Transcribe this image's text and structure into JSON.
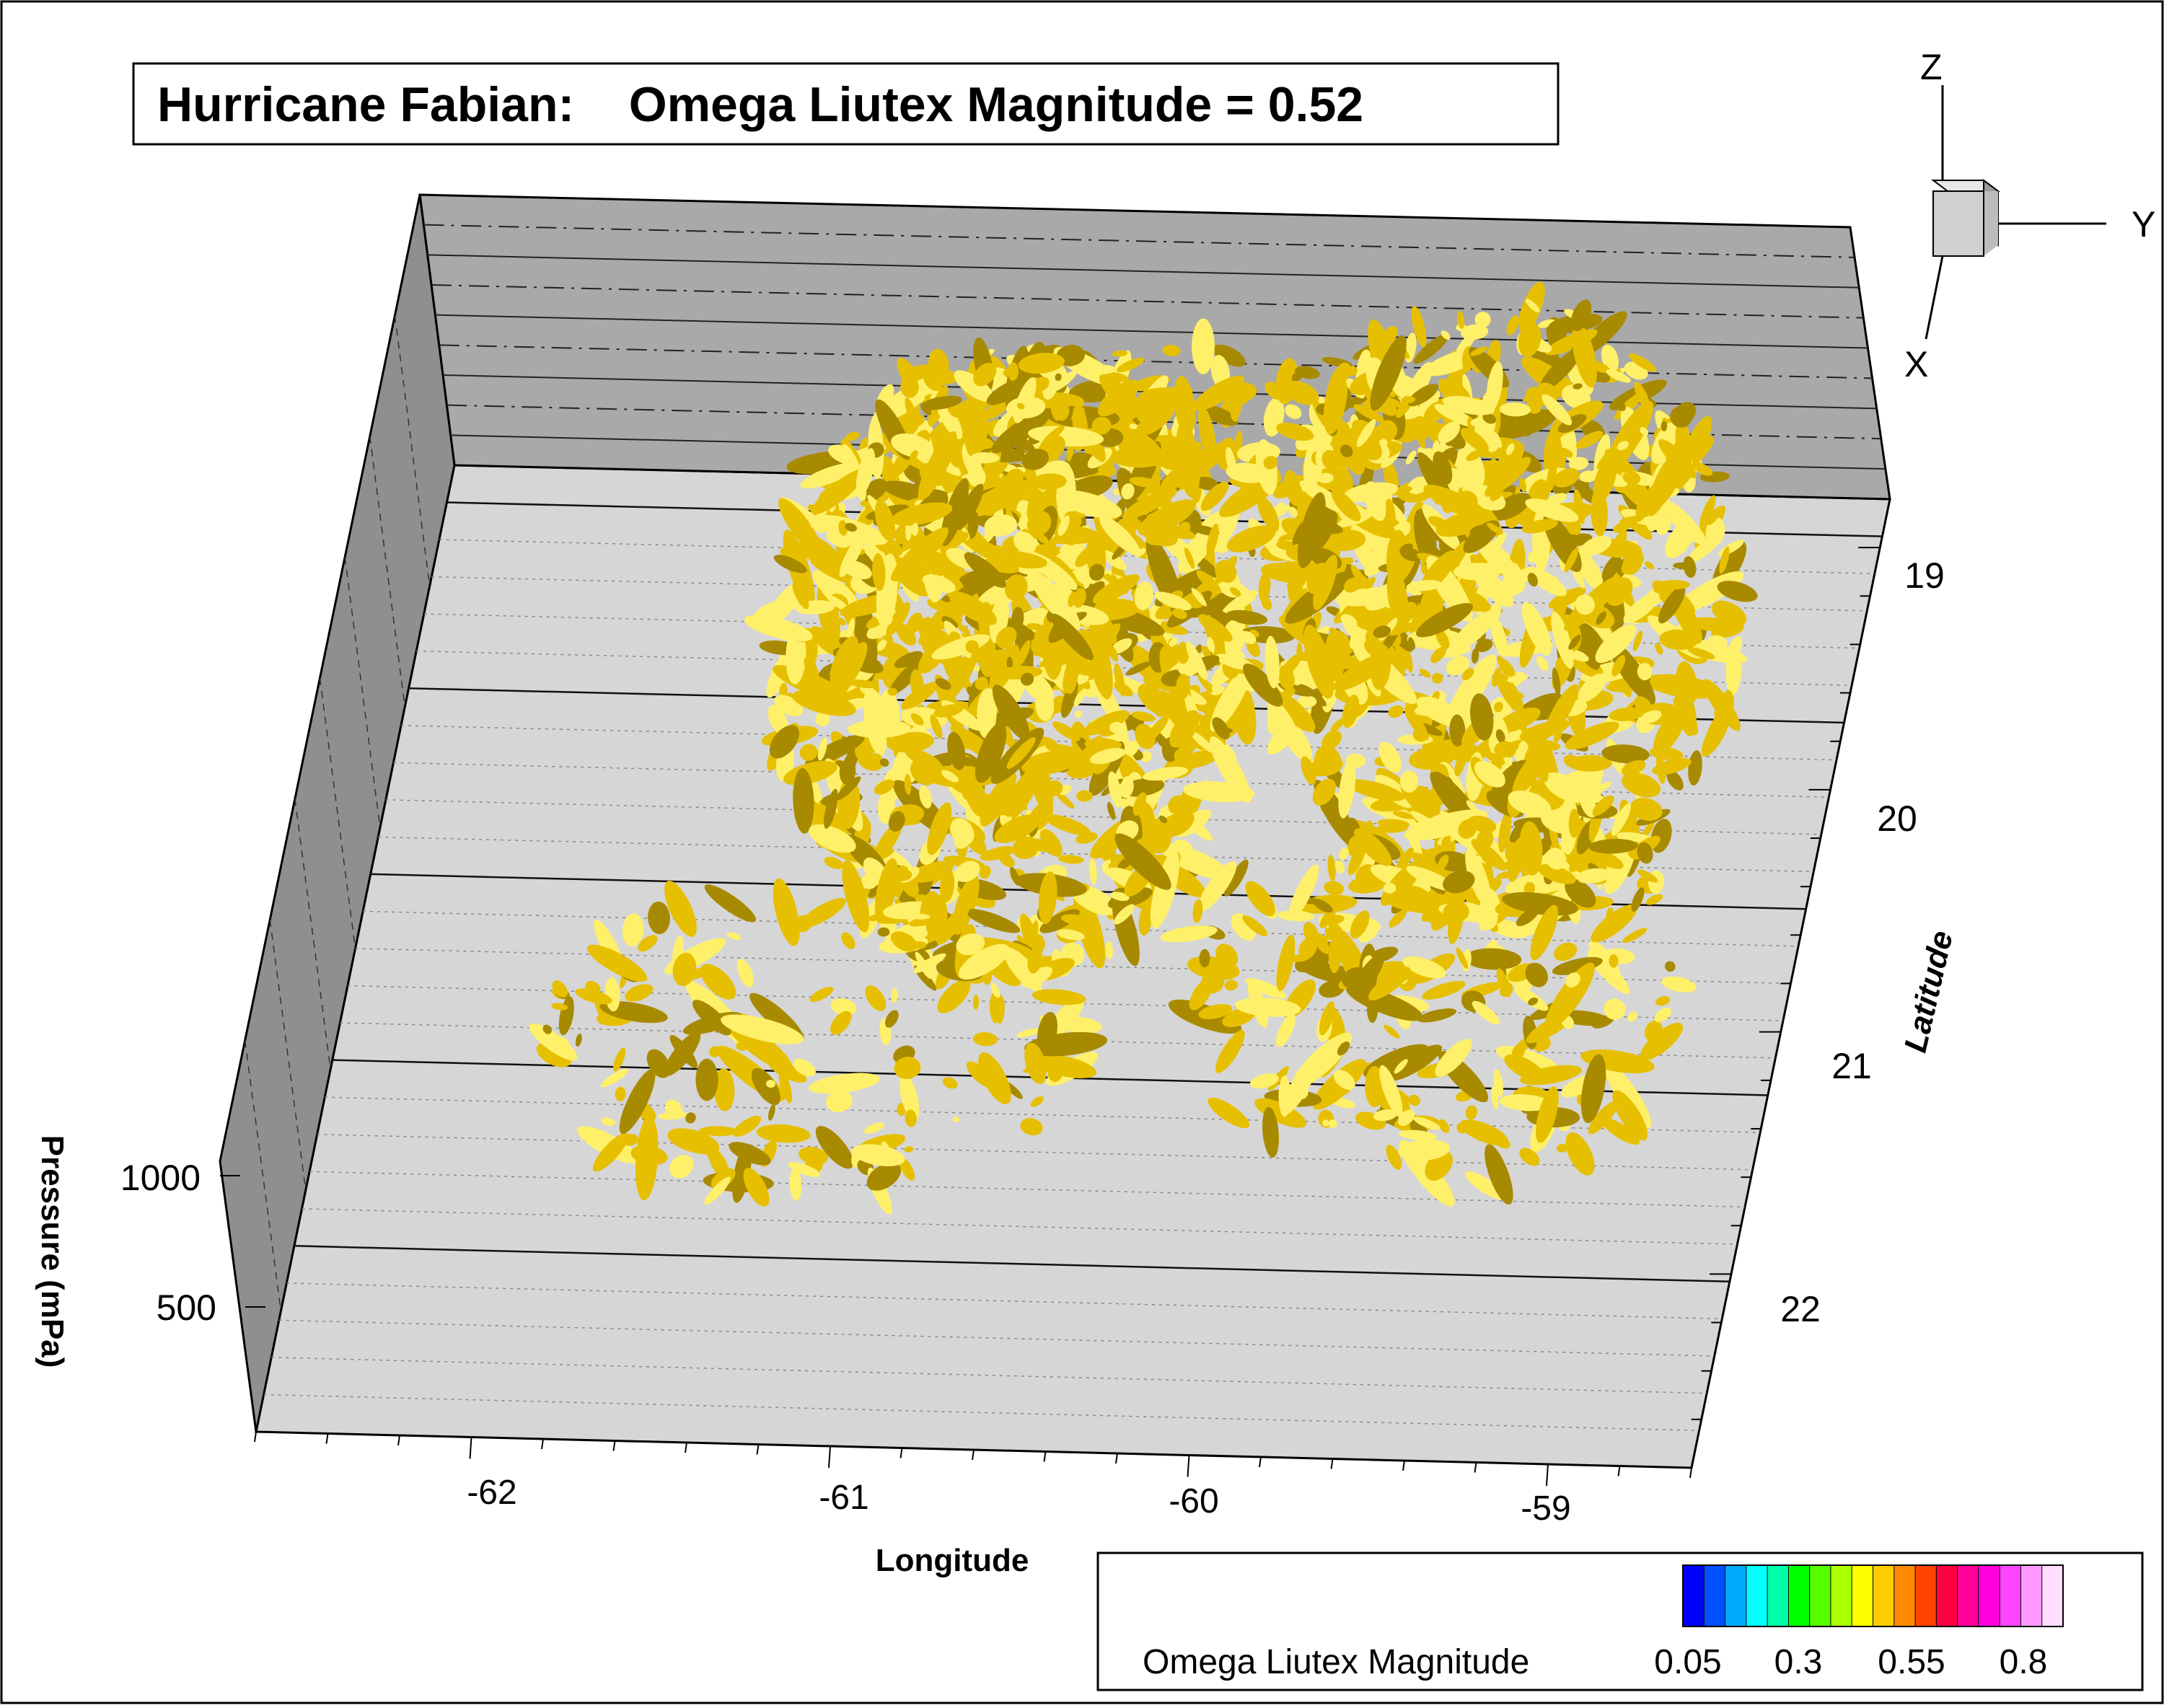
{
  "title": {
    "text": "Hurricane Fabian:    Omega Liutex Magnitude = 0.52"
  },
  "axes_triad": {
    "z_label": "Z",
    "y_label": "Y",
    "x_label": "X"
  },
  "axes": {
    "longitude": {
      "label": "Longitude",
      "ticks": [
        "-62",
        "-61",
        "-60",
        "-59"
      ]
    },
    "latitude": {
      "label": "Latitude",
      "ticks": [
        "19",
        "20",
        "21",
        "22"
      ]
    },
    "pressure": {
      "label": "Pressure (mPa)",
      "ticks": [
        "1000",
        "500"
      ]
    }
  },
  "legend": {
    "label": "Omega Liutex Magnitude",
    "tick_labels": [
      "0.05",
      "0.3",
      "0.55",
      "0.8"
    ],
    "colors": [
      "#0000ff",
      "#0050ff",
      "#00aaff",
      "#00ffff",
      "#00ffaa",
      "#00ff00",
      "#55ff00",
      "#aaff00",
      "#ffff00",
      "#ffcc00",
      "#ff8800",
      "#ff4400",
      "#ff0044",
      "#ff0099",
      "#ff00dd",
      "#ff44ff",
      "#ff99ff",
      "#ffddff"
    ]
  },
  "iso_surface": {
    "color": "#e6c000",
    "highlight": "#fff06a",
    "shadow": "#a88a00"
  },
  "colors": {
    "floor": "#d6d6d6",
    "back_wall": "#a9a9a9",
    "side_wall": "#8f8f8f"
  }
}
